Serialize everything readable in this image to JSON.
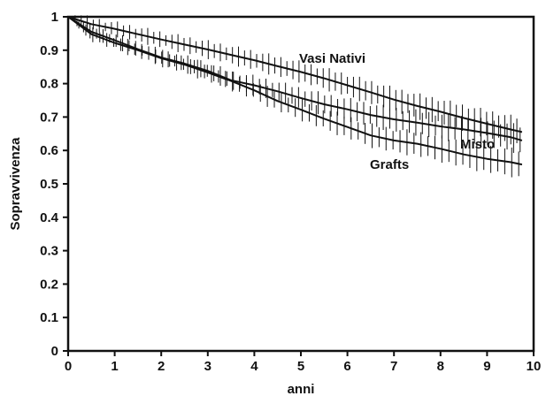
{
  "chart_data": {
    "type": "line",
    "title": "",
    "xlabel": "anni",
    "ylabel": "Sopravvivenza",
    "xlim": [
      0,
      10
    ],
    "ylim": [
      0,
      1
    ],
    "xticks": [
      "0",
      "1",
      "2",
      "3",
      "4",
      "5",
      "6",
      "7",
      "8",
      "9",
      "10"
    ],
    "yticks": [
      "0",
      "0.1",
      "0.2",
      "0.3",
      "0.4",
      "0.5",
      "0.6",
      "0.7",
      "0.8",
      "0.9",
      "1"
    ],
    "grid": false,
    "legend": "none (series labelled directly on the plot)",
    "line_color": "#111111",
    "series": [
      {
        "name": "Vasi Nativi",
        "x": [
          0,
          0.5,
          1,
          1.5,
          2,
          2.5,
          3,
          3.5,
          4,
          4.5,
          5,
          5.5,
          6,
          6.5,
          7,
          7.5,
          8,
          8.5,
          9,
          9.5,
          9.75
        ],
        "y": [
          1.0,
          0.978,
          0.964,
          0.948,
          0.932,
          0.917,
          0.902,
          0.886,
          0.87,
          0.852,
          0.835,
          0.816,
          0.795,
          0.774,
          0.752,
          0.733,
          0.716,
          0.697,
          0.68,
          0.663,
          0.655
        ]
      },
      {
        "name": "Misto",
        "x": [
          0,
          0.5,
          1,
          1.5,
          2,
          2.5,
          3,
          3.5,
          4,
          4.5,
          5,
          5.5,
          6,
          6.5,
          7,
          7.5,
          8,
          8.5,
          9,
          9.5,
          9.75
        ],
        "y": [
          1.0,
          0.955,
          0.93,
          0.903,
          0.878,
          0.86,
          0.838,
          0.81,
          0.795,
          0.777,
          0.757,
          0.738,
          0.723,
          0.706,
          0.693,
          0.683,
          0.672,
          0.663,
          0.652,
          0.64,
          0.63
        ]
      },
      {
        "name": "Grafts",
        "x": [
          0,
          0.5,
          1,
          1.5,
          2,
          2.5,
          3,
          3.5,
          4,
          4.5,
          5,
          5.5,
          6,
          6.5,
          7,
          7.5,
          8,
          8.5,
          9,
          9.5,
          9.75
        ],
        "y": [
          1.0,
          0.948,
          0.922,
          0.9,
          0.876,
          0.857,
          0.833,
          0.808,
          0.78,
          0.748,
          0.722,
          0.695,
          0.67,
          0.645,
          0.63,
          0.62,
          0.605,
          0.588,
          0.575,
          0.565,
          0.558
        ]
      }
    ]
  }
}
